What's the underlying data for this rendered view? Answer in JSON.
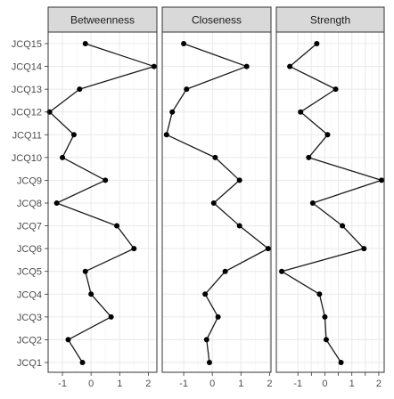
{
  "chart_data": {
    "type": "line",
    "orientation": "horizontal-values",
    "categories": [
      "JCQ15",
      "JCQ14",
      "JCQ13",
      "JCQ12",
      "JCQ11",
      "JCQ10",
      "JCQ9",
      "JCQ8",
      "JCQ7",
      "JCQ6",
      "JCQ5",
      "JCQ4",
      "JCQ3",
      "JCQ2",
      "JCQ1"
    ],
    "grid": true,
    "legend": "none",
    "panels": [
      {
        "title": "Betweenness",
        "xlim": [
          -1.5,
          2.3
        ],
        "xticks": [
          -1,
          0,
          1,
          2
        ],
        "xticklabels": [
          "-1",
          "0",
          "1",
          "2"
        ],
        "values": [
          -0.2,
          2.2,
          -0.4,
          -1.45,
          -0.6,
          -1.0,
          0.5,
          -1.2,
          0.9,
          1.5,
          -0.2,
          0.0,
          0.7,
          -0.8,
          -0.3
        ]
      },
      {
        "title": "Closeness",
        "xlim": [
          -1.75,
          2.05
        ],
        "xticks": [
          -1,
          0,
          1,
          2
        ],
        "xticklabels": [
          "-1",
          "0",
          "1",
          "2"
        ],
        "values": [
          -1.0,
          1.2,
          -0.9,
          -1.4,
          -1.6,
          0.1,
          0.95,
          0.05,
          0.95,
          1.95,
          0.45,
          -0.25,
          0.2,
          -0.2,
          -0.1
        ]
      },
      {
        "title": "Strength",
        "xlim": [
          -1.8,
          2.2
        ],
        "xticks": [
          -1,
          -0.5,
          0,
          0.5,
          1,
          1.5,
          2
        ],
        "xticklabels": [
          "-1",
          "",
          "0",
          "",
          "1",
          "",
          "2"
        ],
        "values": [
          -0.3,
          -1.3,
          0.4,
          -0.9,
          0.1,
          -0.6,
          2.1,
          -0.45,
          0.65,
          1.45,
          -1.6,
          -0.2,
          0.0,
          0.05,
          0.6
        ]
      }
    ]
  },
  "colors": {
    "strip_fill": "#d9d9d9",
    "panel_border": "#333333",
    "grid_major": "#ebebeb",
    "grid_minor": "#f4f4f4",
    "line": "#1a1a1a",
    "point": "#000000",
    "text": "#4d4d4d"
  }
}
